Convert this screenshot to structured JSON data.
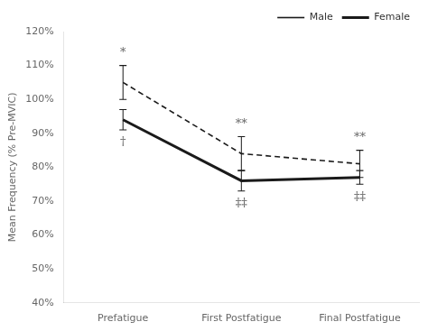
{
  "chart_data": {
    "type": "line",
    "categories": [
      "Prefatigue",
      "First Postfatigue",
      "Final Postfatigue"
    ],
    "series": [
      {
        "name": "Male",
        "color": "#1a1a1a",
        "line_style": "dashed",
        "marker": "none",
        "values": [
          105,
          84,
          81
        ],
        "errors": [
          5,
          5,
          4
        ]
      },
      {
        "name": "Female",
        "color": "#1a1a1a",
        "line_style": "solid",
        "marker": "none",
        "values": [
          94,
          76,
          77
        ],
        "errors": [
          3,
          3,
          2
        ]
      }
    ],
    "ylabel": "Mean Frequency (% Pre-MVIC)",
    "ylim": [
      40,
      120
    ],
    "yticks": [
      {
        "value": 40,
        "label": "40%"
      },
      {
        "value": 50,
        "label": "50%"
      },
      {
        "value": 60,
        "label": "60%"
      },
      {
        "value": 70,
        "label": "70%"
      },
      {
        "value": 80,
        "label": "80%"
      },
      {
        "value": 90,
        "label": "90%"
      },
      {
        "value": 100,
        "label": "100%"
      },
      {
        "value": 110,
        "label": "110%"
      },
      {
        "value": 120,
        "label": "120%"
      }
    ],
    "annotations": [
      {
        "text": "*",
        "x": "Prefatigue",
        "y": 112
      },
      {
        "text": "**",
        "x": "First Postfatigue",
        "y": 91
      },
      {
        "text": "**",
        "x": "Final Postfatigue",
        "y": 87
      },
      {
        "text": "†",
        "x": "Prefatigue",
        "y": 89
      },
      {
        "text": "‡‡",
        "x": "First Postfatigue",
        "y": 71
      },
      {
        "text": "‡‡",
        "x": "Final Postfatigue",
        "y": 73
      }
    ],
    "legend": "upper right",
    "grid": false
  }
}
